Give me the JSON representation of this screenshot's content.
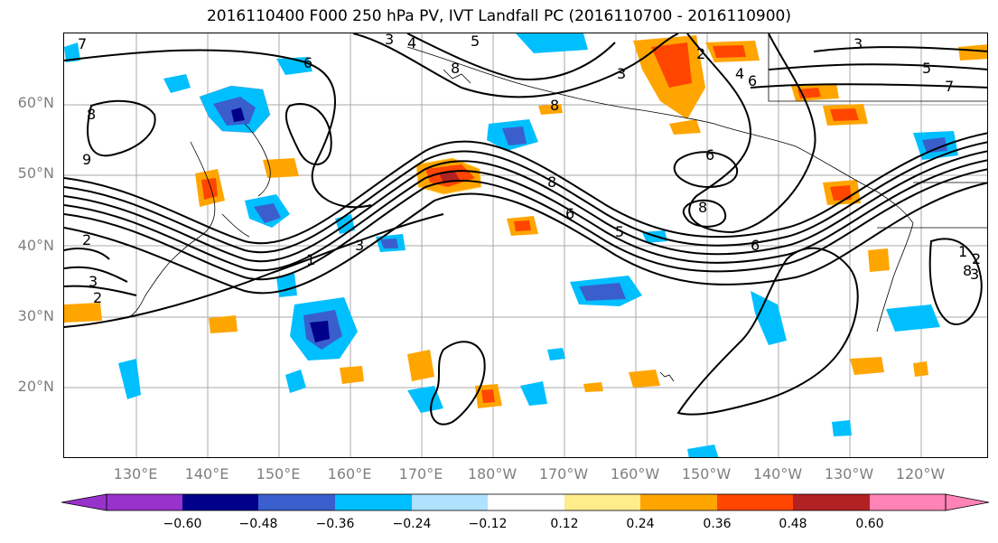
{
  "title": "2016110400 F000 250 hPa PV, IVT Landfall PC (2016110700 - 2016110900)",
  "map": {
    "projection": "PlateCarree",
    "lat_labels": [
      "60°N",
      "50°N",
      "40°N",
      "30°N",
      "20°N"
    ],
    "lon_labels": [
      "130°E",
      "140°E",
      "150°E",
      "160°E",
      "170°E",
      "180°W",
      "170°W",
      "160°W",
      "150°W",
      "140°W",
      "130°W",
      "120°W"
    ],
    "contour_labels": [
      "7",
      "6",
      "8",
      "3",
      "4",
      "5",
      "8",
      "2",
      "3",
      "4",
      "6",
      "3",
      "5",
      "7",
      "6",
      "8",
      "8",
      "8",
      "6",
      "5",
      "6",
      "3",
      "1",
      "2",
      "3",
      "2",
      "1",
      "8",
      "9",
      "2",
      "3"
    ],
    "positive_color": "#ffa500",
    "negative_color": "#00bfff"
  },
  "colorbar": {
    "ticks": [
      "−0.60",
      "−0.48",
      "−0.36",
      "−0.24",
      "−0.12",
      "0.12",
      "0.24",
      "0.36",
      "0.48",
      "0.60"
    ],
    "colors": [
      "#9932cc",
      "#00008b",
      "#3a5fcd",
      "#00bfff",
      "#b0e2ff",
      "#ffffff",
      "#ffec8b",
      "#ffa500",
      "#ff4500",
      "#b22222",
      "#ff83b5"
    ]
  }
}
